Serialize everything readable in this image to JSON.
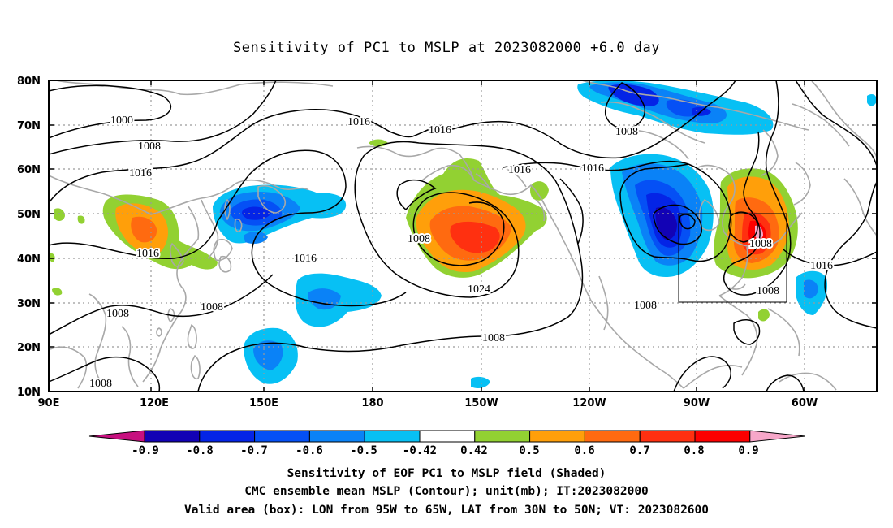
{
  "title": "Sensitivity of PC1 to MSLP at 2023082000 +6.0 day",
  "lat_labels": [
    "80N",
    "70N",
    "60N",
    "50N",
    "40N",
    "30N",
    "20N",
    "10N"
  ],
  "lon_labels": [
    "90E",
    "120E",
    "150E",
    "180",
    "150W",
    "120W",
    "90W",
    "60W"
  ],
  "contour_labels": [
    "1000",
    "1008",
    "1016",
    "1016",
    "1008",
    "1008",
    "1016",
    "1008",
    "1016",
    "1024",
    "1008",
    "1016",
    "1008",
    "1016",
    "1016",
    "1008",
    "1008",
    "1008",
    "1016",
    "1008"
  ],
  "colorbar": {
    "labels": [
      "-0.9",
      "-0.8",
      "-0.7",
      "-0.6",
      "-0.5",
      "-0.42",
      "0.42",
      "0.5",
      "0.6",
      "0.7",
      "0.8",
      "0.9"
    ],
    "colors": [
      "#c7107f",
      "#1202b5",
      "#0424e6",
      "#0550f5",
      "#0a82f7",
      "#07c0f4",
      "#ffffff",
      "#92d132",
      "#ff9f0a",
      "#ff6a10",
      "#ff3010",
      "#fc0000",
      "#f7a7c9"
    ]
  },
  "captions": {
    "line1": "Sensitivity of EOF PC1 to MSLP field (Shaded)",
    "line2": "CMC ensemble mean MSLP (Contour); unit(mb); IT:2023082000",
    "line3": "Valid area (box): LON from 95W to 65W, LAT from 30N to 50N; VT: 2023082600"
  },
  "colors": {
    "coastline": "#a8a8a8",
    "grid": "#9a9a9a",
    "contour": "#000000"
  }
}
